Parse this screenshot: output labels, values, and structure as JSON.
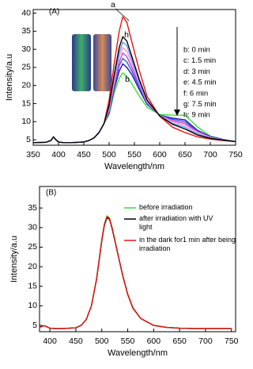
{
  "chart_data": [
    {
      "type": "line",
      "annotations": [
        "(A)",
        "h",
        "b"
      ],
      "xlabel": "Wavelength/nm",
      "ylabel": "Intensity/a.u",
      "x": [
        350,
        375,
        385,
        390,
        395,
        400,
        410,
        425,
        450,
        460,
        470,
        480,
        490,
        500,
        510,
        520,
        527,
        535,
        545,
        560,
        575,
        600,
        625,
        650,
        675,
        700,
        725,
        750
      ],
      "series": [
        {
          "name": "a",
          "color": "#e81515",
          "values": [
            4.2,
            4.3,
            4.8,
            5.8,
            5,
            4.4,
            4.2,
            4.2,
            4.4,
            4.8,
            5.5,
            7,
            9.5,
            16,
            26,
            35,
            39,
            37.5,
            32,
            24,
            17,
            11.5,
            8.5,
            7,
            5.8,
            5.2,
            4.8,
            4.5
          ]
        },
        {
          "name": "b: 0 min",
          "color": "#33e033",
          "values": [
            4.2,
            4.3,
            4.8,
            5.8,
            5,
            4.4,
            4.2,
            4.2,
            4.4,
            4.8,
            5.5,
            7,
            9.5,
            12,
            18,
            22,
            23.5,
            22.5,
            20.5,
            17,
            14,
            12,
            11.8,
            11.8,
            8.5,
            6,
            5.1,
            4.5
          ]
        },
        {
          "name": "c: 1.5 min",
          "color": "#1a1a9c",
          "values": [
            4.2,
            4.3,
            4.8,
            5.8,
            5,
            4.4,
            4.2,
            4.2,
            4.4,
            4.8,
            5.5,
            7,
            9.5,
            12.5,
            19,
            24,
            26,
            25,
            23,
            18.8,
            14.8,
            11.8,
            11,
            10.5,
            7.6,
            5.9,
            5.1,
            4.5
          ]
        },
        {
          "name": "d: 3 min",
          "color": "#3355ff",
          "values": [
            4.2,
            4.3,
            4.8,
            5.8,
            5,
            4.4,
            4.2,
            4.2,
            4.4,
            4.8,
            5.5,
            7,
            9.5,
            12.8,
            19.5,
            25.5,
            27.5,
            26.5,
            24,
            19.5,
            15,
            11.8,
            10.7,
            10,
            7.4,
            5.8,
            5,
            4.5
          ]
        },
        {
          "name": "e: 4.5 min",
          "color": "#cc44cc",
          "values": [
            4.2,
            4.3,
            4.8,
            5.8,
            5,
            4.4,
            4.2,
            4.2,
            4.4,
            4.8,
            5.5,
            7,
            9.5,
            13,
            20,
            26.5,
            29,
            28,
            25,
            20,
            15.3,
            11.7,
            10.3,
            9.5,
            7.2,
            5.7,
            5,
            4.5
          ]
        },
        {
          "name": "f: 6 min",
          "color": "#ff99cc",
          "values": [
            4.2,
            4.3,
            4.8,
            5.8,
            5,
            4.4,
            4.2,
            4.2,
            4.4,
            4.8,
            5.5,
            7,
            9.5,
            13.5,
            21,
            28,
            30.5,
            29.5,
            26,
            20.5,
            15.5,
            11.7,
            10,
            9,
            7,
            5.6,
            5,
            4.5
          ]
        },
        {
          "name": "g: 7.5 min",
          "color": "#6699ff",
          "values": [
            4.2,
            4.3,
            4.8,
            5.8,
            5,
            4.4,
            4.2,
            4.2,
            4.4,
            4.8,
            5.5,
            7,
            9.5,
            14,
            22,
            29,
            32,
            31,
            27,
            21,
            15.8,
            11.6,
            9.6,
            8.5,
            6.6,
            5.5,
            5,
            4.5
          ]
        },
        {
          "name": "h: 9 min",
          "color": "#000000",
          "values": [
            4.2,
            4.3,
            4.8,
            5.8,
            5,
            4.4,
            4.2,
            4.2,
            4.4,
            4.8,
            5.5,
            7,
            9.5,
            14.5,
            23,
            30.5,
            33.5,
            32.3,
            28,
            21.5,
            16,
            11.6,
            9.3,
            8,
            6.3,
            5.4,
            4.9,
            4.5
          ]
        }
      ],
      "xlim": [
        350,
        750
      ],
      "xticks": [
        350,
        400,
        450,
        500,
        550,
        600,
        650,
        700,
        750
      ],
      "ylim": [
        3.5,
        41
      ],
      "yticks": [
        5,
        10,
        15,
        20,
        25,
        30,
        35,
        40
      ]
    },
    {
      "type": "line",
      "annotations": [
        "(B)"
      ],
      "xlabel": "Wavelength/nm",
      "ylabel": "Intensity/a.u",
      "x": [
        380,
        385,
        390,
        395,
        400,
        410,
        425,
        450,
        460,
        470,
        480,
        490,
        500,
        505,
        510,
        515,
        520,
        530,
        540,
        550,
        560,
        575,
        600,
        625,
        650,
        675,
        700,
        750
      ],
      "series": [
        {
          "name": "before irradiation",
          "color": "#33e033",
          "values": [
            4.5,
            4.8,
            4.9,
            4.6,
            4.3,
            4.2,
            4.2,
            4.4,
            5,
            6.5,
            10,
            17,
            27,
            31,
            33,
            32.5,
            30,
            24,
            18,
            13,
            9.5,
            6.8,
            5,
            4.5,
            4.3,
            4.2,
            4.2,
            4.2
          ]
        },
        {
          "name": "after irradiation with UV light",
          "color": "#000000",
          "values": [
            4.5,
            4.8,
            4.9,
            4.6,
            4.3,
            4.2,
            4.2,
            4.4,
            5,
            6.5,
            10,
            16.8,
            26.6,
            30.6,
            32.5,
            32.1,
            29.7,
            23.8,
            17.9,
            12.9,
            9.4,
            6.8,
            5,
            4.5,
            4.3,
            4.2,
            4.2,
            4.2
          ]
        },
        {
          "name": "in the dark for1 min after being irradiation",
          "color": "#e81515",
          "values": [
            4.5,
            4.8,
            4.9,
            4.6,
            4.3,
            4.2,
            4.2,
            4.4,
            5,
            6.5,
            10,
            16.9,
            26.8,
            30.8,
            32.8,
            32.3,
            29.9,
            23.9,
            18,
            13,
            9.5,
            6.8,
            5,
            4.5,
            4.3,
            4.2,
            4.2,
            4.2
          ]
        }
      ],
      "xlim": [
        380,
        758
      ],
      "xticks": [
        400,
        450,
        500,
        550,
        600,
        650,
        700,
        750
      ],
      "ylim": [
        3.4,
        40.5
      ],
      "yticks": [
        5,
        10,
        15,
        20,
        25,
        30,
        35
      ]
    }
  ]
}
